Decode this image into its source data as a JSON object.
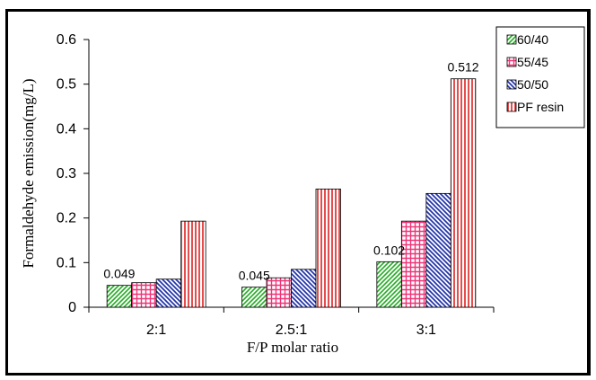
{
  "chart_data": {
    "type": "bar",
    "xlabel": "F/P molar ratio",
    "ylabel": "Formaldehyde emission(mg/L)",
    "categories": [
      "2:1",
      "2.5:1",
      "3:1"
    ],
    "ylim": [
      0,
      0.6
    ],
    "yticks": [
      "0",
      "0.1",
      "0.2",
      "0.3",
      "0.4",
      "0.5",
      "0.6"
    ],
    "grid": false,
    "legend_position": "top-right",
    "series": [
      {
        "name": "60/40",
        "values": [
          0.049,
          0.045,
          0.102
        ],
        "color": "#22aa22",
        "pattern": "diagonal-up"
      },
      {
        "name": "55/45",
        "values": [
          0.055,
          0.066,
          0.193
        ],
        "color": "#ee3377",
        "pattern": "grid"
      },
      {
        "name": "50/50",
        "values": [
          0.063,
          0.085,
          0.255
        ],
        "color": "#2233aa",
        "pattern": "diagonal-down"
      },
      {
        "name": "PF resin",
        "values": [
          0.193,
          0.265,
          0.512
        ],
        "color": "#dd2222",
        "pattern": "vertical"
      }
    ],
    "data_labels": [
      {
        "series": 0,
        "category": 0,
        "text": "0.049"
      },
      {
        "series": 0,
        "category": 1,
        "text": "0.045"
      },
      {
        "series": 0,
        "category": 2,
        "text": "0.102"
      },
      {
        "series": 3,
        "category": 2,
        "text": "0.512"
      }
    ]
  }
}
